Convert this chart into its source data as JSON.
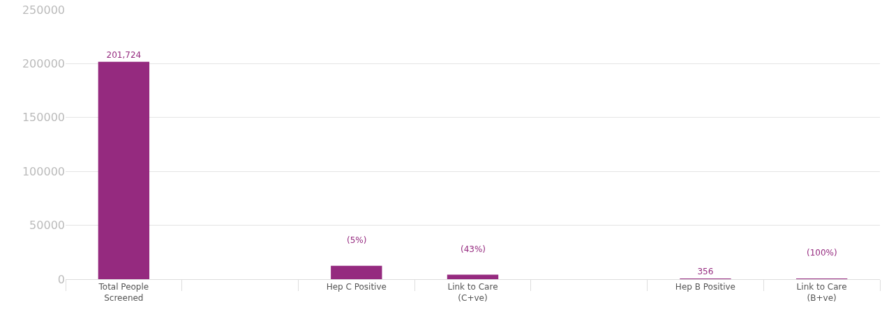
{
  "chart_data": {
    "type": "bar",
    "categories": [
      "Total People Screened",
      null,
      "Hep C Positive",
      "Link to Care (C+ve)",
      null,
      "Hep B Positive",
      "Link to Care (B+ve)"
    ],
    "values": [
      201724,
      null,
      12500,
      4200,
      null,
      356,
      356
    ],
    "value_labels": [
      "201,724",
      null,
      null,
      null,
      null,
      "356",
      null
    ],
    "annotations": [
      "(5%)",
      "(43%)",
      "(100%)"
    ],
    "color": "#952a7f",
    "ylim": [
      0,
      250000
    ],
    "yticks": [
      0,
      50000,
      100000,
      150000,
      200000,
      250000
    ],
    "grid": "y"
  }
}
